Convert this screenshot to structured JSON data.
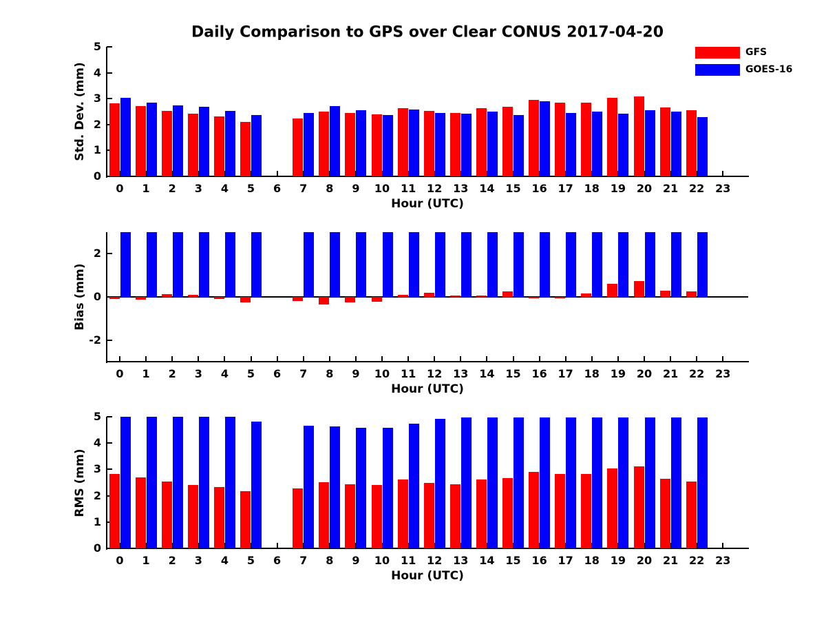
{
  "title": "Daily Comparison to GPS over Clear CONUS 2017-04-20",
  "background_color": "#ffffff",
  "axis_color": "#000000",
  "legend": {
    "position": "top-right",
    "items": [
      {
        "label": "GFS",
        "color": "#ff0000"
      },
      {
        "label": "GOES-16",
        "color": "#0000ff"
      }
    ]
  },
  "chart_data": [
    {
      "id": "stddev",
      "type": "bar",
      "ylabel": "Std. Dev. (mm)",
      "xlabel": "Hour (UTC)",
      "ylim": [
        0,
        5
      ],
      "ytick_values": [
        0,
        1,
        2,
        3,
        4,
        5
      ],
      "ytick_labels": [
        "0",
        "1",
        "2",
        "3",
        "4",
        "5"
      ],
      "grid": false,
      "categories": [
        "0",
        "1",
        "2",
        "3",
        "4",
        "5",
        "6",
        "7",
        "8",
        "9",
        "10",
        "11",
        "12",
        "13",
        "14",
        "15",
        "16",
        "17",
        "18",
        "19",
        "20",
        "21",
        "22",
        "23"
      ],
      "series": [
        {
          "name": "GFS",
          "color": "#ff0000",
          "values": [
            2.81,
            2.71,
            2.53,
            2.41,
            2.32,
            2.11,
            null,
            2.24,
            2.49,
            2.44,
            2.4,
            2.64,
            2.53,
            2.45,
            2.64,
            2.68,
            2.95,
            2.85,
            2.85,
            3.04,
            3.08,
            2.65,
            2.55,
            null
          ]
        },
        {
          "name": "GOES-16",
          "color": "#0000ff",
          "values": [
            3.03,
            2.85,
            2.74,
            2.68,
            2.52,
            2.36,
            null,
            2.44,
            2.71,
            2.54,
            2.36,
            2.58,
            2.46,
            2.42,
            2.5,
            2.37,
            2.91,
            2.46,
            2.49,
            2.41,
            2.56,
            2.5,
            2.28,
            null
          ]
        }
      ]
    },
    {
      "id": "bias",
      "type": "bar",
      "ylabel": "Bias (mm)",
      "xlabel": "Hour (UTC)",
      "ylim": [
        -3,
        3
      ],
      "ytick_values": [
        -2,
        0,
        2
      ],
      "ytick_labels": [
        "-2",
        "0",
        "2"
      ],
      "grid": false,
      "categories": [
        "0",
        "1",
        "2",
        "3",
        "4",
        "5",
        "6",
        "7",
        "8",
        "9",
        "10",
        "11",
        "12",
        "13",
        "14",
        "15",
        "16",
        "17",
        "18",
        "19",
        "20",
        "21",
        "22",
        "23"
      ],
      "series": [
        {
          "name": "GFS",
          "color": "#ff0000",
          "values": [
            -0.1,
            -0.13,
            0.14,
            0.1,
            -0.1,
            -0.25,
            null,
            -0.18,
            -0.35,
            -0.27,
            -0.22,
            0.08,
            0.18,
            0.05,
            0.05,
            0.25,
            -0.05,
            -0.05,
            0.16,
            0.6,
            0.75,
            0.28,
            0.24,
            null
          ]
        },
        {
          "name": "GOES-16",
          "color": "#0000ff",
          "clipped_at_ymax": true,
          "values": [
            3.1,
            3.1,
            3.1,
            3.1,
            3.1,
            3.1,
            null,
            3.1,
            3.1,
            3.1,
            3.1,
            3.1,
            3.1,
            3.1,
            3.1,
            3.1,
            3.1,
            3.1,
            3.1,
            3.1,
            3.1,
            3.1,
            3.1,
            null
          ]
        }
      ]
    },
    {
      "id": "rms",
      "type": "bar",
      "ylabel": "RMS (mm)",
      "xlabel": "Hour (UTC)",
      "ylim": [
        0,
        5
      ],
      "ytick_values": [
        0,
        1,
        2,
        3,
        4,
        5
      ],
      "ytick_labels": [
        "0",
        "1",
        "2",
        "3",
        "4",
        "5"
      ],
      "grid": false,
      "categories": [
        "0",
        "1",
        "2",
        "3",
        "4",
        "5",
        "6",
        "7",
        "8",
        "9",
        "10",
        "11",
        "12",
        "13",
        "14",
        "15",
        "16",
        "17",
        "18",
        "19",
        "20",
        "21",
        "22",
        "23"
      ],
      "series": [
        {
          "name": "GFS",
          "color": "#ff0000",
          "values": [
            2.82,
            2.69,
            2.54,
            2.41,
            2.32,
            2.16,
            null,
            2.27,
            2.51,
            2.43,
            2.41,
            2.62,
            2.49,
            2.43,
            2.62,
            2.66,
            2.91,
            2.84,
            2.84,
            3.04,
            3.11,
            2.64,
            2.54,
            null
          ]
        },
        {
          "name": "GOES-16",
          "color": "#0000ff",
          "values": [
            5.0,
            5.0,
            5.0,
            5.0,
            5.0,
            4.82,
            null,
            4.67,
            4.64,
            4.58,
            4.58,
            4.74,
            4.93,
            4.98,
            4.98,
            4.98,
            4.98,
            4.98,
            4.98,
            4.98,
            4.98,
            4.98,
            4.98,
            null
          ]
        }
      ]
    }
  ]
}
